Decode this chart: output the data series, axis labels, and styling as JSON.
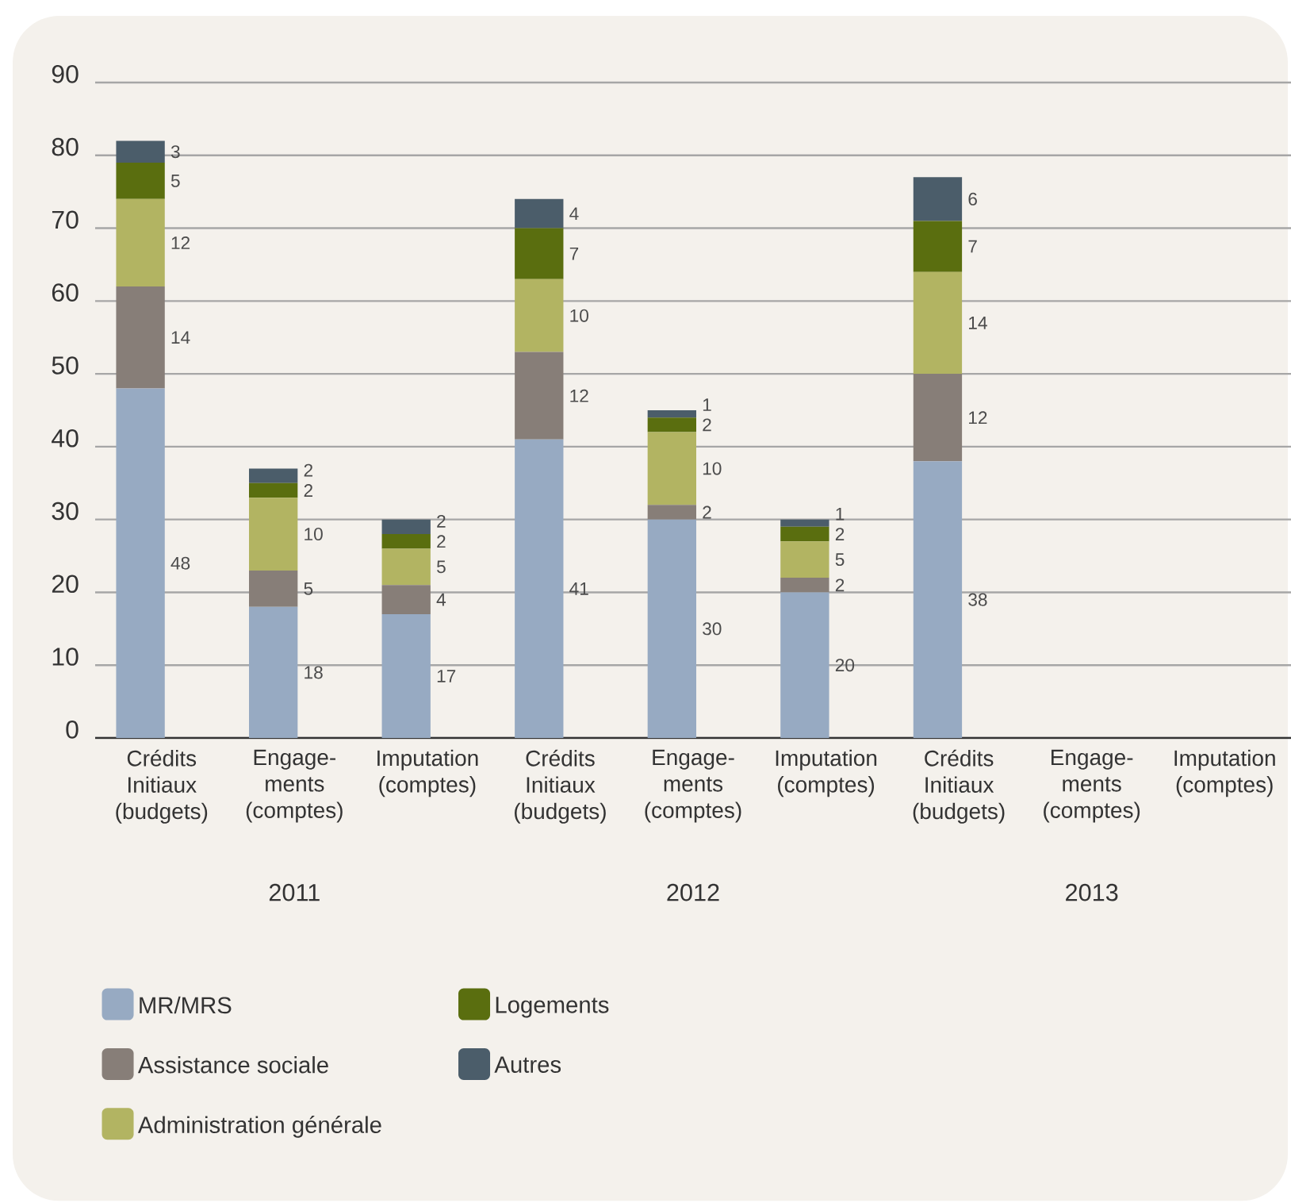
{
  "chart_data": {
    "type": "bar",
    "stacked": true,
    "categories": [
      "Crédits Initiaux (budgets)",
      "Engage-ments (comptes)",
      "Imputation (comptes)",
      "Crédits Initiaux (budgets)",
      "Engage-ments (comptes)",
      "Imputation (comptes)",
      "Crédits Initiaux (budgets)",
      "Engage-ments (comptes)",
      "Imputation (comptes)"
    ],
    "series": [
      {
        "name": "MR/MRS",
        "color": "#97aac2",
        "values": [
          48,
          18,
          17,
          41,
          30,
          20,
          38,
          null,
          null
        ]
      },
      {
        "name": "Assistance sociale",
        "color": "#877e78",
        "values": [
          14,
          5,
          4,
          12,
          2,
          2,
          12,
          null,
          null
        ]
      },
      {
        "name": "Administration générale",
        "color": "#b2b462",
        "values": [
          12,
          10,
          5,
          10,
          10,
          5,
          14,
          null,
          null
        ]
      },
      {
        "name": "Logements",
        "color": "#5a6e0f",
        "values": [
          5,
          2,
          2,
          7,
          2,
          2,
          7,
          null,
          null
        ]
      },
      {
        "name": "Autres",
        "color": "#4b5d6a",
        "values": [
          3,
          2,
          2,
          4,
          1,
          1,
          6,
          null,
          null
        ]
      }
    ],
    "ylim": [
      0,
      90
    ],
    "yticks": [
      0,
      10,
      20,
      30,
      40,
      50,
      60,
      70,
      80,
      90
    ],
    "grid": "y",
    "data_labels": true,
    "legend": "bottom",
    "annotations": [
      "2011",
      "2012",
      "2013"
    ]
  }
}
